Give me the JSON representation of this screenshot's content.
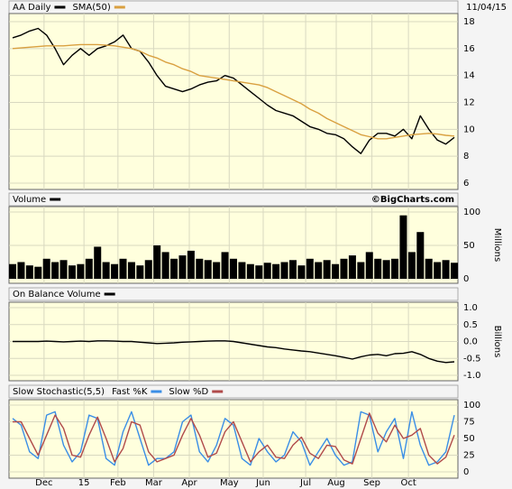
{
  "chart_data": [
    {
      "type": "line",
      "date": "11/04/15",
      "x": [
        0,
        1,
        2,
        3,
        4,
        5,
        6,
        7,
        8,
        9,
        10,
        11,
        12,
        13,
        14,
        15,
        16,
        17,
        18,
        19,
        20,
        21,
        22,
        23,
        24,
        25,
        26,
        27,
        28,
        29,
        30,
        31,
        32,
        33,
        34,
        35,
        36,
        37,
        38,
        39,
        40,
        41,
        42,
        43,
        44,
        45,
        46,
        47,
        48,
        49,
        50,
        51,
        52
      ],
      "series": [
        {
          "name": "AA Daily",
          "color": "#000000",
          "values": [
            16.8,
            17,
            17.3,
            17.5,
            17,
            16,
            14.8,
            15.5,
            16,
            15.5,
            16,
            16.2,
            16.5,
            17,
            16,
            15.8,
            15,
            14,
            13.2,
            13,
            12.8,
            13,
            13.3,
            13.5,
            13.6,
            14,
            13.8,
            13.3,
            12.8,
            12.3,
            11.8,
            11.4,
            11.2,
            11,
            10.6,
            10.2,
            10,
            9.7,
            9.6,
            9.3,
            8.7,
            8.2,
            9.2,
            9.7,
            9.7,
            9.5,
            10,
            9.3,
            11,
            10,
            9.2,
            8.9,
            9.4
          ]
        },
        {
          "name": "SMA(50)",
          "color": "#d9a040",
          "values": [
            16,
            16.05,
            16.1,
            16.15,
            16.2,
            16.2,
            16.2,
            16.25,
            16.3,
            16.3,
            16.3,
            16.25,
            16.2,
            16.1,
            16,
            15.8,
            15.5,
            15.3,
            15,
            14.8,
            14.5,
            14.3,
            14,
            13.9,
            13.8,
            13.7,
            13.6,
            13.5,
            13.4,
            13.3,
            13.1,
            12.8,
            12.5,
            12.2,
            11.9,
            11.5,
            11.2,
            10.8,
            10.5,
            10.2,
            9.9,
            9.6,
            9.45,
            9.3,
            9.3,
            9.4,
            9.5,
            9.6,
            9.65,
            9.7,
            9.65,
            9.55,
            9.5
          ]
        }
      ],
      "xlim": [
        0,
        52
      ],
      "ylim": [
        6,
        18
      ],
      "yticks": [
        6,
        8,
        10,
        12,
        14,
        16,
        18
      ],
      "grid": true
    },
    {
      "type": "bar",
      "annotation": "©BigCharts.com",
      "y_label": "Millions",
      "x": [
        0,
        1,
        2,
        3,
        4,
        5,
        6,
        7,
        8,
        9,
        10,
        11,
        12,
        13,
        14,
        15,
        16,
        17,
        18,
        19,
        20,
        21,
        22,
        23,
        24,
        25,
        26,
        27,
        28,
        29,
        30,
        31,
        32,
        33,
        34,
        35,
        36,
        37,
        38,
        39,
        40,
        41,
        42,
        43,
        44,
        45,
        46,
        47,
        48,
        49,
        50,
        51,
        52
      ],
      "series": [
        {
          "name": "Volume",
          "color": "#000000",
          "values": [
            22,
            25,
            20,
            18,
            30,
            25,
            28,
            20,
            22,
            30,
            48,
            25,
            22,
            30,
            25,
            20,
            28,
            50,
            40,
            30,
            35,
            42,
            30,
            28,
            25,
            40,
            30,
            25,
            22,
            20,
            24,
            22,
            25,
            28,
            20,
            30,
            25,
            28,
            22,
            30,
            35,
            25,
            40,
            30,
            28,
            30,
            95,
            40,
            70,
            30,
            25,
            28,
            24
          ]
        }
      ],
      "xlim": [
        0,
        52
      ],
      "ylim": [
        0,
        100
      ],
      "yticks": [
        0,
        50,
        100
      ],
      "grid": true
    },
    {
      "type": "line",
      "y_label": "Billions",
      "x": [
        0,
        1,
        2,
        3,
        4,
        5,
        6,
        7,
        8,
        9,
        10,
        11,
        12,
        13,
        14,
        15,
        16,
        17,
        18,
        19,
        20,
        21,
        22,
        23,
        24,
        25,
        26,
        27,
        28,
        29,
        30,
        31,
        32,
        33,
        34,
        35,
        36,
        37,
        38,
        39,
        40,
        41,
        42,
        43,
        44,
        45,
        46,
        47,
        48,
        49,
        50,
        51,
        52
      ],
      "series": [
        {
          "name": "On Balance Volume",
          "color": "#000000",
          "values": [
            0,
            0,
            0,
            0,
            0.01,
            0,
            -0.01,
            0,
            0.01,
            0,
            0.02,
            0.02,
            0.01,
            0,
            0,
            -0.02,
            -0.04,
            -0.06,
            -0.05,
            -0.04,
            -0.02,
            -0.01,
            0,
            0.01,
            0.02,
            0.02,
            0,
            -0.04,
            -0.08,
            -0.12,
            -0.16,
            -0.18,
            -0.22,
            -0.25,
            -0.28,
            -0.3,
            -0.34,
            -0.38,
            -0.42,
            -0.47,
            -0.52,
            -0.45,
            -0.4,
            -0.38,
            -0.42,
            -0.36,
            -0.35,
            -0.3,
            -0.38,
            -0.5,
            -0.58,
            -0.62,
            -0.6
          ]
        }
      ],
      "xlim": [
        0,
        52
      ],
      "ylim": [
        -1,
        1
      ],
      "yticks": [
        {
          "value": -1,
          "label": "-1.0"
        },
        -0.5,
        {
          "value": 0,
          "label": "0.0"
        },
        0.5,
        {
          "value": 1,
          "label": "1.0"
        }
      ],
      "grid": true
    },
    {
      "type": "line",
      "title": "Slow Stochastic(5,5)",
      "x": [
        0,
        1,
        2,
        3,
        4,
        5,
        6,
        7,
        8,
        9,
        10,
        11,
        12,
        13,
        14,
        15,
        16,
        17,
        18,
        19,
        20,
        21,
        22,
        23,
        24,
        25,
        26,
        27,
        28,
        29,
        30,
        31,
        32,
        33,
        34,
        35,
        36,
        37,
        38,
        39,
        40,
        41,
        42,
        43,
        44,
        45,
        46,
        47,
        48,
        49,
        50,
        51,
        52
      ],
      "series": [
        {
          "name": "Fast %K",
          "color": "#3a8ee6",
          "values": [
            80,
            70,
            30,
            20,
            85,
            90,
            40,
            15,
            30,
            85,
            80,
            20,
            10,
            60,
            90,
            50,
            10,
            20,
            20,
            30,
            75,
            85,
            30,
            15,
            40,
            80,
            70,
            20,
            10,
            50,
            30,
            15,
            25,
            60,
            45,
            10,
            30,
            50,
            25,
            10,
            15,
            90,
            85,
            30,
            60,
            80,
            20,
            90,
            40,
            10,
            15,
            30,
            85
          ]
        },
        {
          "name": "Slow %D",
          "color": "#b04a4a",
          "values": [
            75,
            75,
            50,
            25,
            55,
            85,
            65,
            25,
            22,
            55,
            82,
            50,
            15,
            35,
            75,
            70,
            30,
            15,
            20,
            25,
            55,
            80,
            55,
            22,
            28,
            60,
            75,
            45,
            15,
            30,
            40,
            22,
            20,
            40,
            52,
            28,
            20,
            40,
            38,
            18,
            12,
            50,
            88,
            58,
            45,
            70,
            50,
            55,
            65,
            25,
            12,
            22,
            55
          ]
        }
      ],
      "xlim": [
        0,
        52
      ],
      "ylim": [
        0,
        100
      ],
      "yticks": [
        0,
        25,
        50,
        75,
        100
      ],
      "grid": true,
      "xticks": [
        {
          "value": 3.7,
          "label": "Dec"
        },
        {
          "value": 8.4,
          "label": "15"
        },
        {
          "value": 12.4,
          "label": "Feb"
        },
        {
          "value": 16.6,
          "label": "Mar"
        },
        {
          "value": 20.8,
          "label": "Apr"
        },
        {
          "value": 25.5,
          "label": "May"
        },
        {
          "value": 29.5,
          "label": "Jun"
        },
        {
          "value": 34.5,
          "label": "Jul"
        },
        {
          "value": 38.1,
          "label": "Aug"
        },
        {
          "value": 42.3,
          "label": "Sep"
        },
        {
          "value": 46.6,
          "label": "Oct"
        }
      ]
    }
  ]
}
